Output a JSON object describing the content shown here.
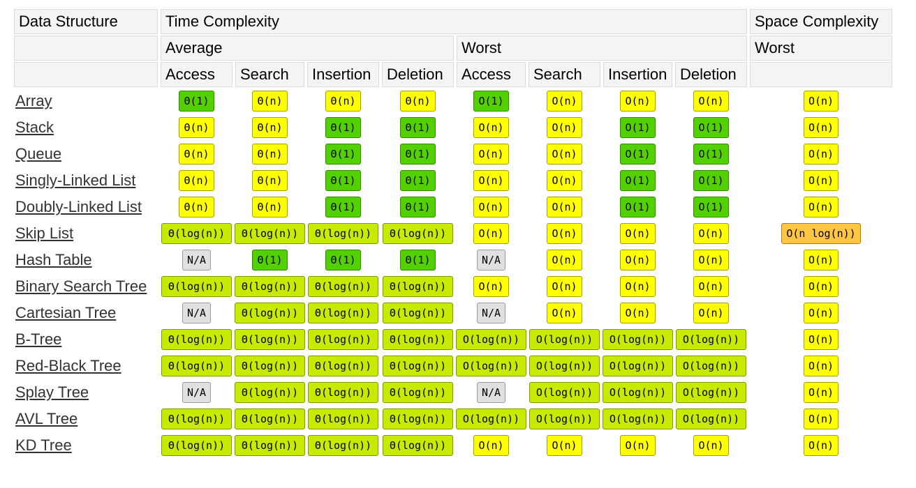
{
  "header": {
    "data_structure": "Data Structure",
    "time_complexity": "Time Complexity",
    "space_complexity": "Space Complexity",
    "average": "Average",
    "worst": "Worst",
    "space_worst": "Worst",
    "ops": [
      "Access",
      "Search",
      "Insertion",
      "Deletion",
      "Access",
      "Search",
      "Insertion",
      "Deletion"
    ]
  },
  "colors": {
    "green": "#53d000",
    "lime": "#c8ea00",
    "yellow": "#ffff00",
    "orange": "#ffc543",
    "gray": "#e0e0e0"
  },
  "rows": [
    {
      "name": "Array",
      "cells": [
        [
          "Θ(1)",
          "green"
        ],
        [
          "Θ(n)",
          "yellow"
        ],
        [
          "Θ(n)",
          "yellow"
        ],
        [
          "Θ(n)",
          "yellow"
        ],
        [
          "O(1)",
          "green"
        ],
        [
          "O(n)",
          "yellow"
        ],
        [
          "O(n)",
          "yellow"
        ],
        [
          "O(n)",
          "yellow"
        ],
        [
          "O(n)",
          "yellow"
        ]
      ]
    },
    {
      "name": "Stack",
      "cells": [
        [
          "Θ(n)",
          "yellow"
        ],
        [
          "Θ(n)",
          "yellow"
        ],
        [
          "Θ(1)",
          "green"
        ],
        [
          "Θ(1)",
          "green"
        ],
        [
          "O(n)",
          "yellow"
        ],
        [
          "O(n)",
          "yellow"
        ],
        [
          "O(1)",
          "green"
        ],
        [
          "O(1)",
          "green"
        ],
        [
          "O(n)",
          "yellow"
        ]
      ]
    },
    {
      "name": "Queue",
      "cells": [
        [
          "Θ(n)",
          "yellow"
        ],
        [
          "Θ(n)",
          "yellow"
        ],
        [
          "Θ(1)",
          "green"
        ],
        [
          "Θ(1)",
          "green"
        ],
        [
          "O(n)",
          "yellow"
        ],
        [
          "O(n)",
          "yellow"
        ],
        [
          "O(1)",
          "green"
        ],
        [
          "O(1)",
          "green"
        ],
        [
          "O(n)",
          "yellow"
        ]
      ]
    },
    {
      "name": "Singly-Linked List",
      "cells": [
        [
          "Θ(n)",
          "yellow"
        ],
        [
          "Θ(n)",
          "yellow"
        ],
        [
          "Θ(1)",
          "green"
        ],
        [
          "Θ(1)",
          "green"
        ],
        [
          "O(n)",
          "yellow"
        ],
        [
          "O(n)",
          "yellow"
        ],
        [
          "O(1)",
          "green"
        ],
        [
          "O(1)",
          "green"
        ],
        [
          "O(n)",
          "yellow"
        ]
      ]
    },
    {
      "name": "Doubly-Linked List",
      "cells": [
        [
          "Θ(n)",
          "yellow"
        ],
        [
          "Θ(n)",
          "yellow"
        ],
        [
          "Θ(1)",
          "green"
        ],
        [
          "Θ(1)",
          "green"
        ],
        [
          "O(n)",
          "yellow"
        ],
        [
          "O(n)",
          "yellow"
        ],
        [
          "O(1)",
          "green"
        ],
        [
          "O(1)",
          "green"
        ],
        [
          "O(n)",
          "yellow"
        ]
      ]
    },
    {
      "name": "Skip List",
      "cells": [
        [
          "Θ(log(n))",
          "lime"
        ],
        [
          "Θ(log(n))",
          "lime"
        ],
        [
          "Θ(log(n))",
          "lime"
        ],
        [
          "Θ(log(n))",
          "lime"
        ],
        [
          "O(n)",
          "yellow"
        ],
        [
          "O(n)",
          "yellow"
        ],
        [
          "O(n)",
          "yellow"
        ],
        [
          "O(n)",
          "yellow"
        ],
        [
          "O(n log(n))",
          "orange"
        ]
      ]
    },
    {
      "name": "Hash Table",
      "cells": [
        [
          "N/A",
          "gray"
        ],
        [
          "Θ(1)",
          "green"
        ],
        [
          "Θ(1)",
          "green"
        ],
        [
          "Θ(1)",
          "green"
        ],
        [
          "N/A",
          "gray"
        ],
        [
          "O(n)",
          "yellow"
        ],
        [
          "O(n)",
          "yellow"
        ],
        [
          "O(n)",
          "yellow"
        ],
        [
          "O(n)",
          "yellow"
        ]
      ]
    },
    {
      "name": "Binary Search Tree",
      "cells": [
        [
          "Θ(log(n))",
          "lime"
        ],
        [
          "Θ(log(n))",
          "lime"
        ],
        [
          "Θ(log(n))",
          "lime"
        ],
        [
          "Θ(log(n))",
          "lime"
        ],
        [
          "O(n)",
          "yellow"
        ],
        [
          "O(n)",
          "yellow"
        ],
        [
          "O(n)",
          "yellow"
        ],
        [
          "O(n)",
          "yellow"
        ],
        [
          "O(n)",
          "yellow"
        ]
      ]
    },
    {
      "name": "Cartesian Tree",
      "cells": [
        [
          "N/A",
          "gray"
        ],
        [
          "Θ(log(n))",
          "lime"
        ],
        [
          "Θ(log(n))",
          "lime"
        ],
        [
          "Θ(log(n))",
          "lime"
        ],
        [
          "N/A",
          "gray"
        ],
        [
          "O(n)",
          "yellow"
        ],
        [
          "O(n)",
          "yellow"
        ],
        [
          "O(n)",
          "yellow"
        ],
        [
          "O(n)",
          "yellow"
        ]
      ]
    },
    {
      "name": "B-Tree",
      "cells": [
        [
          "Θ(log(n))",
          "lime"
        ],
        [
          "Θ(log(n))",
          "lime"
        ],
        [
          "Θ(log(n))",
          "lime"
        ],
        [
          "Θ(log(n))",
          "lime"
        ],
        [
          "O(log(n))",
          "lime"
        ],
        [
          "O(log(n))",
          "lime"
        ],
        [
          "O(log(n))",
          "lime"
        ],
        [
          "O(log(n))",
          "lime"
        ],
        [
          "O(n)",
          "yellow"
        ]
      ]
    },
    {
      "name": "Red-Black Tree",
      "cells": [
        [
          "Θ(log(n))",
          "lime"
        ],
        [
          "Θ(log(n))",
          "lime"
        ],
        [
          "Θ(log(n))",
          "lime"
        ],
        [
          "Θ(log(n))",
          "lime"
        ],
        [
          "O(log(n))",
          "lime"
        ],
        [
          "O(log(n))",
          "lime"
        ],
        [
          "O(log(n))",
          "lime"
        ],
        [
          "O(log(n))",
          "lime"
        ],
        [
          "O(n)",
          "yellow"
        ]
      ]
    },
    {
      "name": "Splay Tree",
      "cells": [
        [
          "N/A",
          "gray"
        ],
        [
          "Θ(log(n))",
          "lime"
        ],
        [
          "Θ(log(n))",
          "lime"
        ],
        [
          "Θ(log(n))",
          "lime"
        ],
        [
          "N/A",
          "gray"
        ],
        [
          "O(log(n))",
          "lime"
        ],
        [
          "O(log(n))",
          "lime"
        ],
        [
          "O(log(n))",
          "lime"
        ],
        [
          "O(n)",
          "yellow"
        ]
      ]
    },
    {
      "name": "AVL Tree",
      "cells": [
        [
          "Θ(log(n))",
          "lime"
        ],
        [
          "Θ(log(n))",
          "lime"
        ],
        [
          "Θ(log(n))",
          "lime"
        ],
        [
          "Θ(log(n))",
          "lime"
        ],
        [
          "O(log(n))",
          "lime"
        ],
        [
          "O(log(n))",
          "lime"
        ],
        [
          "O(log(n))",
          "lime"
        ],
        [
          "O(log(n))",
          "lime"
        ],
        [
          "O(n)",
          "yellow"
        ]
      ]
    },
    {
      "name": "KD Tree",
      "cells": [
        [
          "Θ(log(n))",
          "lime"
        ],
        [
          "Θ(log(n))",
          "lime"
        ],
        [
          "Θ(log(n))",
          "lime"
        ],
        [
          "Θ(log(n))",
          "lime"
        ],
        [
          "O(n)",
          "yellow"
        ],
        [
          "O(n)",
          "yellow"
        ],
        [
          "O(n)",
          "yellow"
        ],
        [
          "O(n)",
          "yellow"
        ],
        [
          "O(n)",
          "yellow"
        ]
      ]
    }
  ]
}
